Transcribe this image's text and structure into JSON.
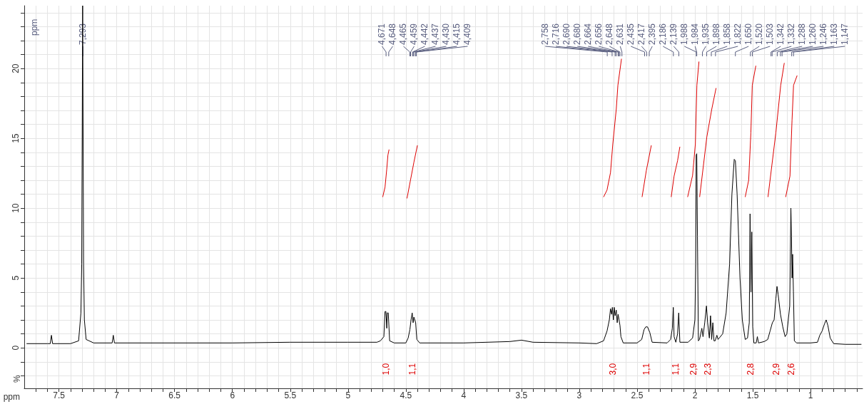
{
  "chart_data": {
    "type": "line",
    "xlabel": "ppm",
    "ylabel": "%",
    "xlim": [
      7.8,
      0.55
    ],
    "ylim": [
      -2.9,
      24.5
    ],
    "xticks": [
      {
        "value": 7.7,
        "label": null
      },
      {
        "value": 7.6,
        "label": null
      },
      7.5,
      {
        "value": 7.4,
        "label": null
      },
      {
        "value": 7.3,
        "label": null
      },
      {
        "value": 7.2,
        "label": null
      },
      {
        "value": 7.1,
        "label": null
      },
      7,
      {
        "value": 6.9,
        "label": null
      },
      {
        "value": 6.8,
        "label": null
      },
      {
        "value": 6.7,
        "label": null
      },
      {
        "value": 6.6,
        "label": null
      },
      6.5,
      {
        "value": 6.4,
        "label": null
      },
      {
        "value": 6.3,
        "label": null
      },
      {
        "value": 6.2,
        "label": null
      },
      {
        "value": 6.1,
        "label": null
      },
      6,
      {
        "value": 5.9,
        "label": null
      },
      {
        "value": 5.8,
        "label": null
      },
      {
        "value": 5.7,
        "label": null
      },
      {
        "value": 5.6,
        "label": null
      },
      5.5,
      {
        "value": 5.4,
        "label": null
      },
      {
        "value": 5.3,
        "label": null
      },
      {
        "value": 5.2,
        "label": null
      },
      {
        "value": 5.1,
        "label": null
      },
      5,
      {
        "value": 4.9,
        "label": null
      },
      {
        "value": 4.8,
        "label": null
      },
      {
        "value": 4.7,
        "label": null
      },
      {
        "value": 4.6,
        "label": null
      },
      4.5,
      {
        "value": 4.4,
        "label": null
      },
      {
        "value": 4.3,
        "label": null
      },
      {
        "value": 4.2,
        "label": null
      },
      {
        "value": 4.1,
        "label": null
      },
      4,
      {
        "value": 3.9,
        "label": null
      },
      {
        "value": 3.8,
        "label": null
      },
      {
        "value": 3.7,
        "label": null
      },
      {
        "value": 3.6,
        "label": null
      },
      3.5,
      {
        "value": 3.4,
        "label": null
      },
      {
        "value": 3.3,
        "label": null
      },
      {
        "value": 3.2,
        "label": null
      },
      {
        "value": 3.1,
        "label": null
      },
      3,
      {
        "value": 2.9,
        "label": null
      },
      {
        "value": 2.8,
        "label": null
      },
      {
        "value": 2.7,
        "label": null
      },
      {
        "value": 2.6,
        "label": null
      },
      2.5,
      {
        "value": 2.4,
        "label": null
      },
      {
        "value": 2.3,
        "label": null
      },
      {
        "value": 2.2,
        "label": null
      },
      {
        "value": 2.1,
        "label": null
      },
      2,
      {
        "value": 1.9,
        "label": null
      },
      {
        "value": 1.8,
        "label": null
      },
      {
        "value": 1.7,
        "label": null
      },
      {
        "value": 1.6,
        "label": null
      },
      1.5,
      {
        "value": 1.4,
        "label": null
      },
      {
        "value": 1.3,
        "label": null
      },
      {
        "value": 1.2,
        "label": null
      },
      {
        "value": 1.1,
        "label": null
      },
      1,
      {
        "value": 0.9,
        "label": null
      },
      {
        "value": 0.8,
        "label": null
      },
      {
        "value": 0.7,
        "label": null
      },
      {
        "value": 0.6,
        "label": null
      }
    ],
    "yticks": [
      {
        "value": -2,
        "label": null
      },
      {
        "value": -1,
        "label": null
      },
      0,
      {
        "value": 1,
        "label": null
      },
      {
        "value": 2,
        "label": null
      },
      {
        "value": 3,
        "label": null
      },
      {
        "value": 4,
        "label": null
      },
      5,
      {
        "value": 6,
        "label": null
      },
      {
        "value": 7,
        "label": null
      },
      {
        "value": 8,
        "label": null
      },
      {
        "value": 9,
        "label": null
      },
      10,
      {
        "value": 11,
        "label": null
      },
      {
        "value": 12,
        "label": null
      },
      {
        "value": 13,
        "label": null
      },
      {
        "value": 14,
        "label": null
      },
      15,
      {
        "value": 16,
        "label": null
      },
      {
        "value": 17,
        "label": null
      },
      {
        "value": 18,
        "label": null
      },
      {
        "value": 19,
        "label": null
      },
      20,
      {
        "value": 21,
        "label": null
      },
      {
        "value": 22,
        "label": null
      },
      {
        "value": 23,
        "label": null
      },
      {
        "value": 24,
        "label": null
      }
    ],
    "grid": true,
    "marker": "none",
    "series": [
      {
        "color": "#000000",
        "x": [
          7.78,
          7.6,
          7.575,
          7.565,
          7.555,
          7.4,
          7.33,
          7.31,
          7.303,
          7.295,
          7.287,
          7.28,
          7.265,
          7.2,
          7.04,
          7.03,
          7.02,
          6.0,
          5.5,
          5.0,
          4.75,
          4.72,
          4.69,
          4.68,
          4.672,
          4.665,
          4.66,
          4.652,
          4.64,
          4.6,
          4.5,
          4.48,
          4.465,
          4.455,
          4.445,
          4.437,
          4.43,
          4.415,
          4.405,
          4.38,
          4.0,
          3.6,
          3.5,
          3.4,
          3.0,
          2.85,
          2.79,
          2.76,
          2.74,
          2.73,
          2.72,
          2.714,
          2.705,
          2.698,
          2.69,
          2.68,
          2.672,
          2.664,
          2.656,
          2.648,
          2.64,
          2.62,
          2.5,
          2.46,
          2.44,
          2.425,
          2.41,
          2.39,
          2.37,
          2.24,
          2.21,
          2.195,
          2.187,
          2.18,
          2.165,
          2.15,
          2.14,
          2.13,
          2.06,
          2.02,
          2.0,
          1.993,
          1.988,
          1.984,
          1.978,
          1.97,
          1.96,
          1.95,
          1.94,
          1.93,
          1.915,
          1.9,
          1.89,
          1.875,
          1.865,
          1.855,
          1.845,
          1.835,
          1.825,
          1.81,
          1.8,
          1.76,
          1.73,
          1.7,
          1.68,
          1.66,
          1.65,
          1.635,
          1.61,
          1.59,
          1.565,
          1.545,
          1.53,
          1.523,
          1.515,
          1.508,
          1.5,
          1.49,
          1.47,
          1.46,
          1.45,
          1.4,
          1.37,
          1.35,
          1.33,
          1.315,
          1.3,
          1.29,
          1.28,
          1.26,
          1.24,
          1.22,
          1.205,
          1.18,
          1.17,
          1.165,
          1.16,
          1.155,
          1.148,
          1.14,
          1.12,
          1.0,
          0.94,
          0.92,
          0.9,
          0.88,
          0.865,
          0.85,
          0.83,
          0.8,
          0.7,
          0.56
        ],
        "values": [
          0.3,
          0.3,
          0.3,
          0.9,
          0.3,
          0.3,
          0.5,
          2.5,
          6,
          24.5,
          6,
          2,
          0.6,
          0.35,
          0.35,
          0.9,
          0.35,
          0.35,
          0.4,
          0.4,
          0.4,
          0.5,
          0.8,
          2.6,
          2.6,
          1.4,
          2.5,
          2.5,
          0.5,
          0.35,
          0.35,
          0.7,
          1.3,
          2.0,
          2.5,
          1.8,
          2.2,
          1.8,
          0.6,
          0.35,
          0.35,
          0.45,
          0.55,
          0.4,
          0.35,
          0.3,
          0.5,
          1.2,
          2.0,
          2.8,
          2.4,
          2.9,
          2.0,
          2.9,
          2.3,
          2.7,
          1.8,
          2.4,
          2.0,
          1.6,
          0.8,
          0.35,
          0.35,
          0.6,
          1.3,
          1.5,
          1.5,
          1.1,
          0.4,
          0.35,
          0.6,
          1.4,
          2.9,
          0.8,
          0.4,
          1.0,
          2.5,
          0.4,
          0.4,
          0.7,
          2.0,
          6,
          13.8,
          13.9,
          8,
          0.5,
          0.6,
          1.0,
          1.4,
          0.8,
          1.8,
          3.0,
          1.8,
          0.7,
          2.3,
          0.6,
          1.8,
          0.5,
          0.5,
          0.9,
          0.6,
          1.0,
          2.5,
          6,
          11,
          13.5,
          13.4,
          11,
          5,
          2.0,
          0.6,
          0.7,
          1.8,
          9.6,
          4,
          8.3,
          1.5,
          0.35,
          0.35,
          0.8,
          0.35,
          0.45,
          0.6,
          1.2,
          1.8,
          2.0,
          3.5,
          4.4,
          3.8,
          2.4,
          1.5,
          0.8,
          1.0,
          3.0,
          10.0,
          8,
          5,
          6.7,
          4,
          0.5,
          0.35,
          0.35,
          0.4,
          0.9,
          1.2,
          1.7,
          2.0,
          1.6,
          0.7,
          0.3,
          0.25,
          0.25
        ]
      },
      {
        "color": "#dd0000",
        "x": [
          4.7,
          4.68,
          4.665,
          4.655,
          4.645
        ],
        "values": [
          10.8,
          11.5,
          12.8,
          13.8,
          14.2
        ]
      },
      {
        "color": "#dd0000",
        "x": [
          4.49,
          4.46,
          4.43,
          4.4
        ],
        "values": [
          10.7,
          12.0,
          13.3,
          14.5
        ]
      },
      {
        "color": "#dd0000",
        "x": [
          2.79,
          2.76,
          2.73,
          2.71,
          2.68,
          2.666,
          2.635
        ],
        "values": [
          10.8,
          11.3,
          12.55,
          14.6,
          17.1,
          18.8,
          20.7
        ]
      },
      {
        "color": "#dd0000",
        "x": [
          2.457,
          2.42,
          2.377
        ],
        "values": [
          10.8,
          12.7,
          14.5
        ]
      },
      {
        "color": "#dd0000",
        "x": [
          2.205,
          2.18,
          2.15,
          2.13
        ],
        "values": [
          10.8,
          12.3,
          13.4,
          14.4
        ]
      },
      {
        "color": "#dd0000",
        "x": [
          2.063,
          2.02,
          1.996,
          1.983,
          1.965
        ],
        "values": [
          10.8,
          12.35,
          14.6,
          18.8,
          20.5
        ]
      },
      {
        "color": "#dd0000",
        "x": [
          1.959,
          1.897,
          1.854,
          1.817
        ],
        "values": [
          10.8,
          15.1,
          17.1,
          18.6
        ]
      },
      {
        "color": "#dd0000",
        "x": [
          1.565,
          1.535,
          1.516,
          1.504,
          1.473
        ],
        "values": [
          10.8,
          12.0,
          15.4,
          18.8,
          20.2
        ]
      },
      {
        "color": "#dd0000",
        "x": [
          1.368,
          1.3,
          1.258,
          1.227
        ],
        "values": [
          10.8,
          15.4,
          18.8,
          20.4
        ]
      },
      {
        "color": "#dd0000",
        "x": [
          1.215,
          1.178,
          1.16,
          1.147,
          1.116
        ],
        "values": [
          10.8,
          12.3,
          16.3,
          18.8,
          19.5
        ]
      }
    ],
    "annotations": [
      "ppm",
      {
        "text": "7,293",
        "x": 7.293
      },
      {
        "text": "4,671",
        "x": 4.671
      },
      {
        "text": "4,648",
        "x": 4.648
      },
      {
        "text": "4,465",
        "x": 4.465
      },
      {
        "text": "4,459",
        "x": 4.459
      },
      {
        "text": "4,442",
        "x": 4.442
      },
      {
        "text": "4,437",
        "x": 4.437
      },
      {
        "text": "4,430",
        "x": 4.43
      },
      {
        "text": "4,415",
        "x": 4.415
      },
      {
        "text": "4,409",
        "x": 4.409
      },
      {
        "text": "2,758",
        "x": 2.758
      },
      {
        "text": "2,716",
        "x": 2.716
      },
      {
        "text": "2,690",
        "x": 2.69
      },
      {
        "text": "2,680",
        "x": 2.68
      },
      {
        "text": "2,664",
        "x": 2.664
      },
      {
        "text": "2,656",
        "x": 2.656
      },
      {
        "text": "2,648",
        "x": 2.648
      },
      {
        "text": "2,631",
        "x": 2.631
      },
      {
        "text": "2,435",
        "x": 2.435
      },
      {
        "text": "2,417",
        "x": 2.417
      },
      {
        "text": "2,395",
        "x": 2.395
      },
      {
        "text": "2,186",
        "x": 2.186
      },
      {
        "text": "2,139",
        "x": 2.139
      },
      {
        "text": "1,988",
        "x": 1.988
      },
      {
        "text": "1,984",
        "x": 1.984
      },
      {
        "text": "1,935",
        "x": 1.935
      },
      {
        "text": "1,898",
        "x": 1.898
      },
      {
        "text": "1,858",
        "x": 1.858
      },
      {
        "text": "1,822",
        "x": 1.822
      },
      {
        "text": "1,650",
        "x": 1.65
      },
      {
        "text": "1,520",
        "x": 1.52
      },
      {
        "text": "1,503",
        "x": 1.503
      },
      {
        "text": "1,342",
        "x": 1.342
      },
      {
        "text": "1,332",
        "x": 1.332
      },
      {
        "text": "1,288",
        "x": 1.288
      },
      {
        "text": "1,260",
        "x": 1.26
      },
      {
        "text": "1,246",
        "x": 1.246
      },
      {
        "text": "1,163",
        "x": 1.163
      },
      {
        "text": "1,147",
        "x": 1.147
      },
      "1,0",
      "1,1",
      "3,0",
      "1,1",
      "1,1",
      "2,9",
      "2,3",
      "2,8",
      "2,9",
      "2,6"
    ]
  }
}
